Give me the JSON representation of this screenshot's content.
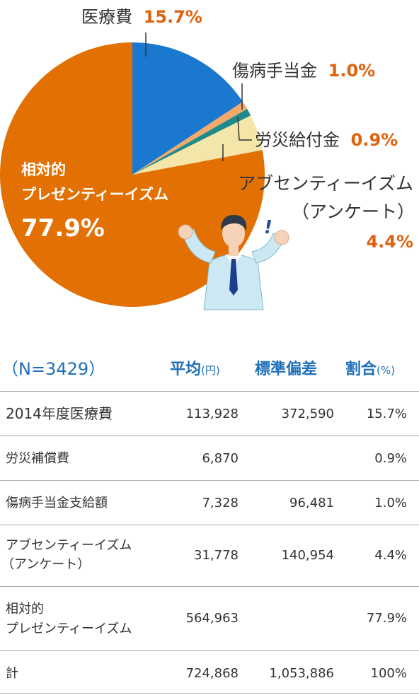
{
  "chart_data": {
    "type": "pie",
    "slices": [
      {
        "key": "iryohi",
        "name": "医療費",
        "value": 15.7,
        "pct_label": "15.7%",
        "color": "#1b78cf"
      },
      {
        "key": "shobyo",
        "name": "傷病手当金",
        "value": 1.0,
        "pct_label": "1.0%",
        "color": "#f3a96a"
      },
      {
        "key": "rosai",
        "name": "労災給付金",
        "value": 0.9,
        "pct_label": "0.9%",
        "color": "#1f8a8c"
      },
      {
        "key": "absent",
        "name_line1": "アブセンティーイズム",
        "name_line2": "（アンケート）",
        "value": 4.4,
        "pct_label": "4.4%",
        "color": "#f4e5a8"
      },
      {
        "key": "presente",
        "name_line1": "相対的",
        "name_line2": "プレゼンティーイズム",
        "value": 77.9,
        "pct_label": "77.9%",
        "color": "#e37002"
      }
    ]
  },
  "table": {
    "n_label": "（N=3429）",
    "header": {
      "avg": "平均",
      "avg_unit": "(円)",
      "sd": "標準偏差",
      "pct": "割合",
      "pct_unit": "(%)"
    },
    "rows": [
      {
        "name1": "2014年度医療費",
        "name2": "",
        "avg": "113,928",
        "sd": "372,590",
        "pct": "15.7%"
      },
      {
        "name1": "労災補償費",
        "name2": "",
        "avg": "6,870",
        "sd": "",
        "pct": "0.9%"
      },
      {
        "name1": "傷病手当金支給額",
        "name2": "",
        "avg": "7,328",
        "sd": "96,481",
        "pct": "1.0%"
      },
      {
        "name1": "アブセンティーイズム",
        "name2": "（アンケート）",
        "avg": "31,778",
        "sd": "140,954",
        "pct": "4.4%"
      },
      {
        "name1": "相対的",
        "name2": "プレゼンティーイズム",
        "avg": "564,963",
        "sd": "",
        "pct": "77.9%"
      },
      {
        "name1": "計",
        "name2": "",
        "avg": "724,868",
        "sd": "1,053,886",
        "pct": "100%"
      }
    ]
  }
}
